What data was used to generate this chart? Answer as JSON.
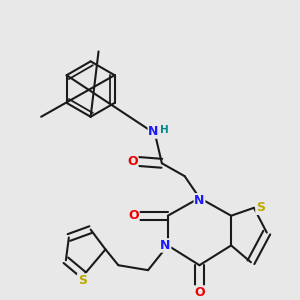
{
  "bg": "#e8e8e8",
  "bc": "#1a1a1a",
  "blw": 1.5,
  "dbo": 0.018,
  "colors": {
    "N": "#1a1aff",
    "O": "#ee0000",
    "S": "#bbaa00",
    "H": "#008888"
  },
  "afs": 9,
  "sfs": 7
}
